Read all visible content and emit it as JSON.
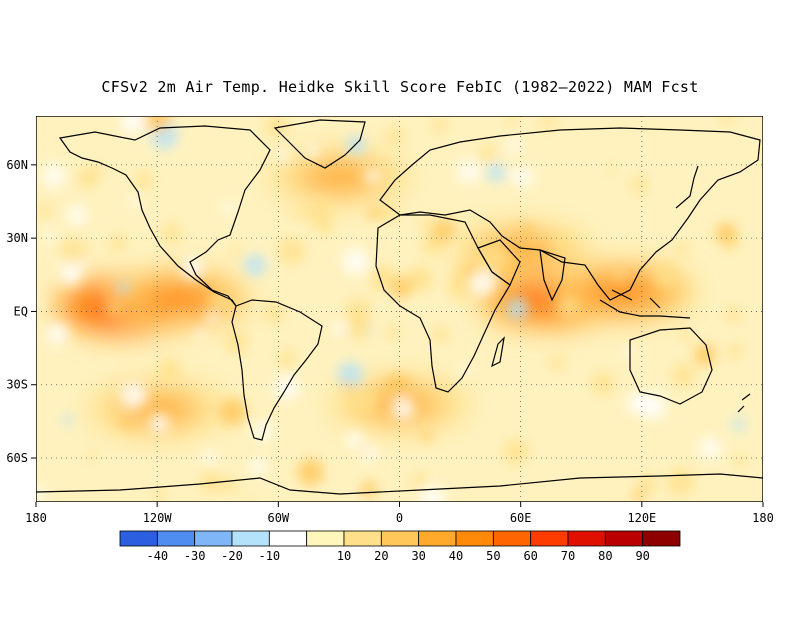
{
  "title": "CFSv2 2m Air Temp. Heidke Skill Score FebIC (1982–2022) MAM Fcst",
  "map": {
    "lon_range": [
      -180,
      180
    ],
    "lat_range": [
      -78,
      80
    ],
    "lat_ticks": [
      {
        "value": 60,
        "label": "60N"
      },
      {
        "value": 30,
        "label": "30N"
      },
      {
        "value": 0,
        "label": "EQ"
      },
      {
        "value": -30,
        "label": "30S"
      },
      {
        "value": -60,
        "label": "60S"
      }
    ],
    "lon_ticks": [
      {
        "value": -180,
        "label": "180"
      },
      {
        "value": -120,
        "label": "120W"
      },
      {
        "value": -60,
        "label": "60W"
      },
      {
        "value": 0,
        "label": "0"
      },
      {
        "value": 60,
        "label": "60E"
      },
      {
        "value": 120,
        "label": "120E"
      },
      {
        "value": 180,
        "label": "180"
      }
    ],
    "grid": "dotted",
    "hot_spots": [
      {
        "lon": -135,
        "lat": 2,
        "skill": 70
      },
      {
        "lon": -110,
        "lat": 5,
        "skill": 55
      },
      {
        "lon": 75,
        "lat": 5,
        "skill": 60
      },
      {
        "lon": 110,
        "lat": 8,
        "skill": 55
      },
      {
        "lon": -30,
        "lat": 55,
        "skill": 45
      },
      {
        "lon": 0,
        "lat": -38,
        "skill": 45
      },
      {
        "lon": -120,
        "lat": -40,
        "skill": 40
      },
      {
        "lon": 60,
        "lat": 25,
        "skill": 40
      }
    ]
  },
  "colorbar": {
    "colors": [
      "#2b5fe0",
      "#4f8ef0",
      "#7fb6f7",
      "#b4e2fb",
      "#ffffff",
      "#fff6bb",
      "#ffe08a",
      "#ffc65a",
      "#ffaa2a",
      "#ff8a0a",
      "#ff6600",
      "#ff3c00",
      "#e01000",
      "#bb0000",
      "#8e0000"
    ],
    "labels": [
      "-40",
      "-30",
      "-20",
      "-10",
      "10",
      "20",
      "30",
      "40",
      "50",
      "60",
      "70",
      "80",
      "90"
    ]
  }
}
